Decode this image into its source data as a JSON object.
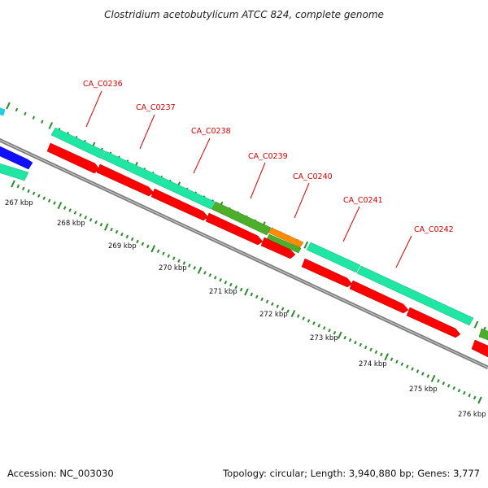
{
  "header": {
    "title": "Clostridium acetobutylicum ATCC 824, complete genome"
  },
  "footer": {
    "accession": "Accession: NC_003030",
    "summary": "Topology: circular; Length: 3,940,880 bp; Genes: 3,777"
  },
  "ruler": {
    "labels": [
      "267 kbp",
      "268 kbp",
      "269 kbp",
      "270 kbp",
      "271 kbp",
      "272 kbp",
      "273 kbp",
      "274 kbp",
      "275 kbp",
      "276 kbp"
    ]
  },
  "gene_labels": [
    "CA_C0236",
    "CA_C0237",
    "CA_C0238",
    "CA_C0239",
    "CA_C0240",
    "CA_C0241",
    "CA_C0242"
  ],
  "colors": {
    "cog_bar": "#1fe7a3",
    "cog_bar_alt": "#4caf2a",
    "cog_bar_orange": "#ff8c00",
    "cog_bar_cyan": "#15d7e0",
    "cds_arrow": "#ff0000",
    "left_arrow_blue": "#1010ff",
    "backbone": "#8a8a8a",
    "tick": "#2a8a2a",
    "label_red": "#e00000"
  }
}
